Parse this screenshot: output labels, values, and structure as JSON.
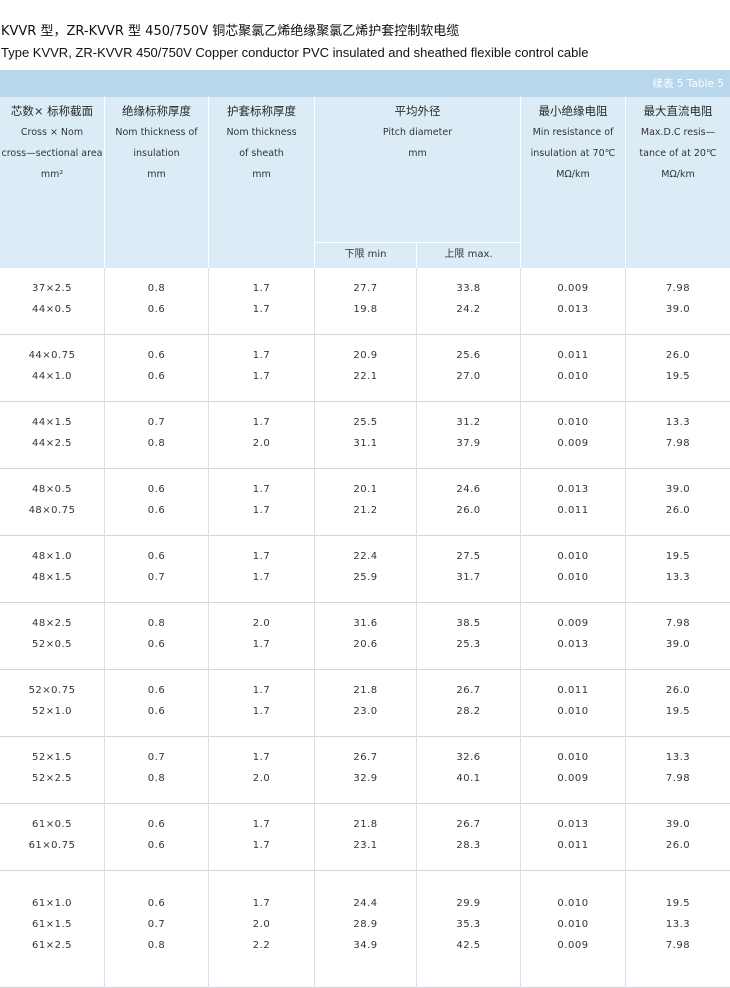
{
  "title_zh": "KVVR 型，ZR-KVVR 型 450/750V 铜芯聚氯乙烯绝缘聚氯乙烯护套控制软电缆",
  "title_en": "Type KVVR, ZR-KVVR 450/750V Copper conductor PVC insulated and sheathed flexible control cable",
  "table_label": "续表 5  Table 5",
  "headers": {
    "col1": {
      "zh": "芯数× 标称截面",
      "en1": "Cross × Nom",
      "en2": "cross—sectional area",
      "en3": "mm²"
    },
    "col2": {
      "zh": "绝缘标称厚度",
      "en1": "Nom thickness of",
      "en2": "insulation",
      "en3": "mm"
    },
    "col3": {
      "zh": "护套标称厚度",
      "en1": "Nom thickness",
      "en2": "of sheath",
      "en3": "mm"
    },
    "col4": {
      "zh": "平均外径",
      "en1": "Pitch diameter",
      "en2": "mm",
      "sub_min": "下限 min",
      "sub_max": "上限 max."
    },
    "col5": {
      "zh": "最小绝缘电阻",
      "en1": "Min resistance of",
      "en2": "insulation at 70℃",
      "en3": "MΩ/km"
    },
    "col6": {
      "zh": "最大直流电阻",
      "en1": "Max.D.C resis—",
      "en2": "tance of at 20℃",
      "en3": "MΩ/km"
    }
  },
  "rows": [
    {
      "lines": [
        [
          "37×2.5",
          "0.8",
          "1.7",
          "27.7",
          "33.8",
          "0.009",
          "7.98"
        ],
        [
          "44×0.5",
          "0.6",
          "1.7",
          "19.8",
          "24.2",
          "0.013",
          "39.0"
        ]
      ]
    },
    {
      "lines": [
        [
          "44×0.75",
          "0.6",
          "1.7",
          "20.9",
          "25.6",
          "0.011",
          "26.0"
        ],
        [
          "44×1.0",
          "0.6",
          "1.7",
          "22.1",
          "27.0",
          "0.010",
          "19.5"
        ]
      ]
    },
    {
      "lines": [
        [
          "44×1.5",
          "0.7",
          "1.7",
          "25.5",
          "31.2",
          "0.010",
          "13.3"
        ],
        [
          "44×2.5",
          "0.8",
          "2.0",
          "31.1",
          "37.9",
          "0.009",
          "7.98"
        ]
      ]
    },
    {
      "lines": [
        [
          "48×0.5",
          "0.6",
          "1.7",
          "20.1",
          "24.6",
          "0.013",
          "39.0"
        ],
        [
          "48×0.75",
          "0.6",
          "1.7",
          "21.2",
          "26.0",
          "0.011",
          "26.0"
        ]
      ]
    },
    {
      "lines": [
        [
          "48×1.0",
          "0.6",
          "1.7",
          "22.4",
          "27.5",
          "0.010",
          "19.5"
        ],
        [
          "48×1.5",
          "0.7",
          "1.7",
          "25.9",
          "31.7",
          "0.010",
          "13.3"
        ]
      ]
    },
    {
      "lines": [
        [
          "48×2.5",
          "0.8",
          "2.0",
          "31.6",
          "38.5",
          "0.009",
          "7.98"
        ],
        [
          "52×0.5",
          "0.6",
          "1.7",
          "20.6",
          "25.3",
          "0.013",
          "39.0"
        ]
      ]
    },
    {
      "lines": [
        [
          "52×0.75",
          "0.6",
          "1.7",
          "21.8",
          "26.7",
          "0.011",
          "26.0"
        ],
        [
          "52×1.0",
          "0.6",
          "1.7",
          "23.0",
          "28.2",
          "0.010",
          "19.5"
        ]
      ]
    },
    {
      "lines": [
        [
          "52×1.5",
          "0.7",
          "1.7",
          "26.7",
          "32.6",
          "0.010",
          "13.3"
        ],
        [
          "52×2.5",
          "0.8",
          "2.0",
          "32.9",
          "40.1",
          "0.009",
          "7.98"
        ]
      ]
    },
    {
      "lines": [
        [
          "61×0.5",
          "0.6",
          "1.7",
          "21.8",
          "26.7",
          "0.013",
          "39.0"
        ],
        [
          "61×0.75",
          "0.6",
          "1.7",
          "23.1",
          "28.3",
          "0.011",
          "26.0"
        ]
      ]
    },
    {
      "lines": [
        [
          "61×1.0",
          "0.6",
          "1.7",
          "24.4",
          "29.9",
          "0.010",
          "19.5"
        ],
        [
          "61×1.5",
          "0.7",
          "2.0",
          "28.9",
          "35.3",
          "0.010",
          "13.3"
        ],
        [
          "61×2.5",
          "0.8",
          "2.2",
          "34.9",
          "42.5",
          "0.009",
          "7.98"
        ]
      ]
    }
  ]
}
